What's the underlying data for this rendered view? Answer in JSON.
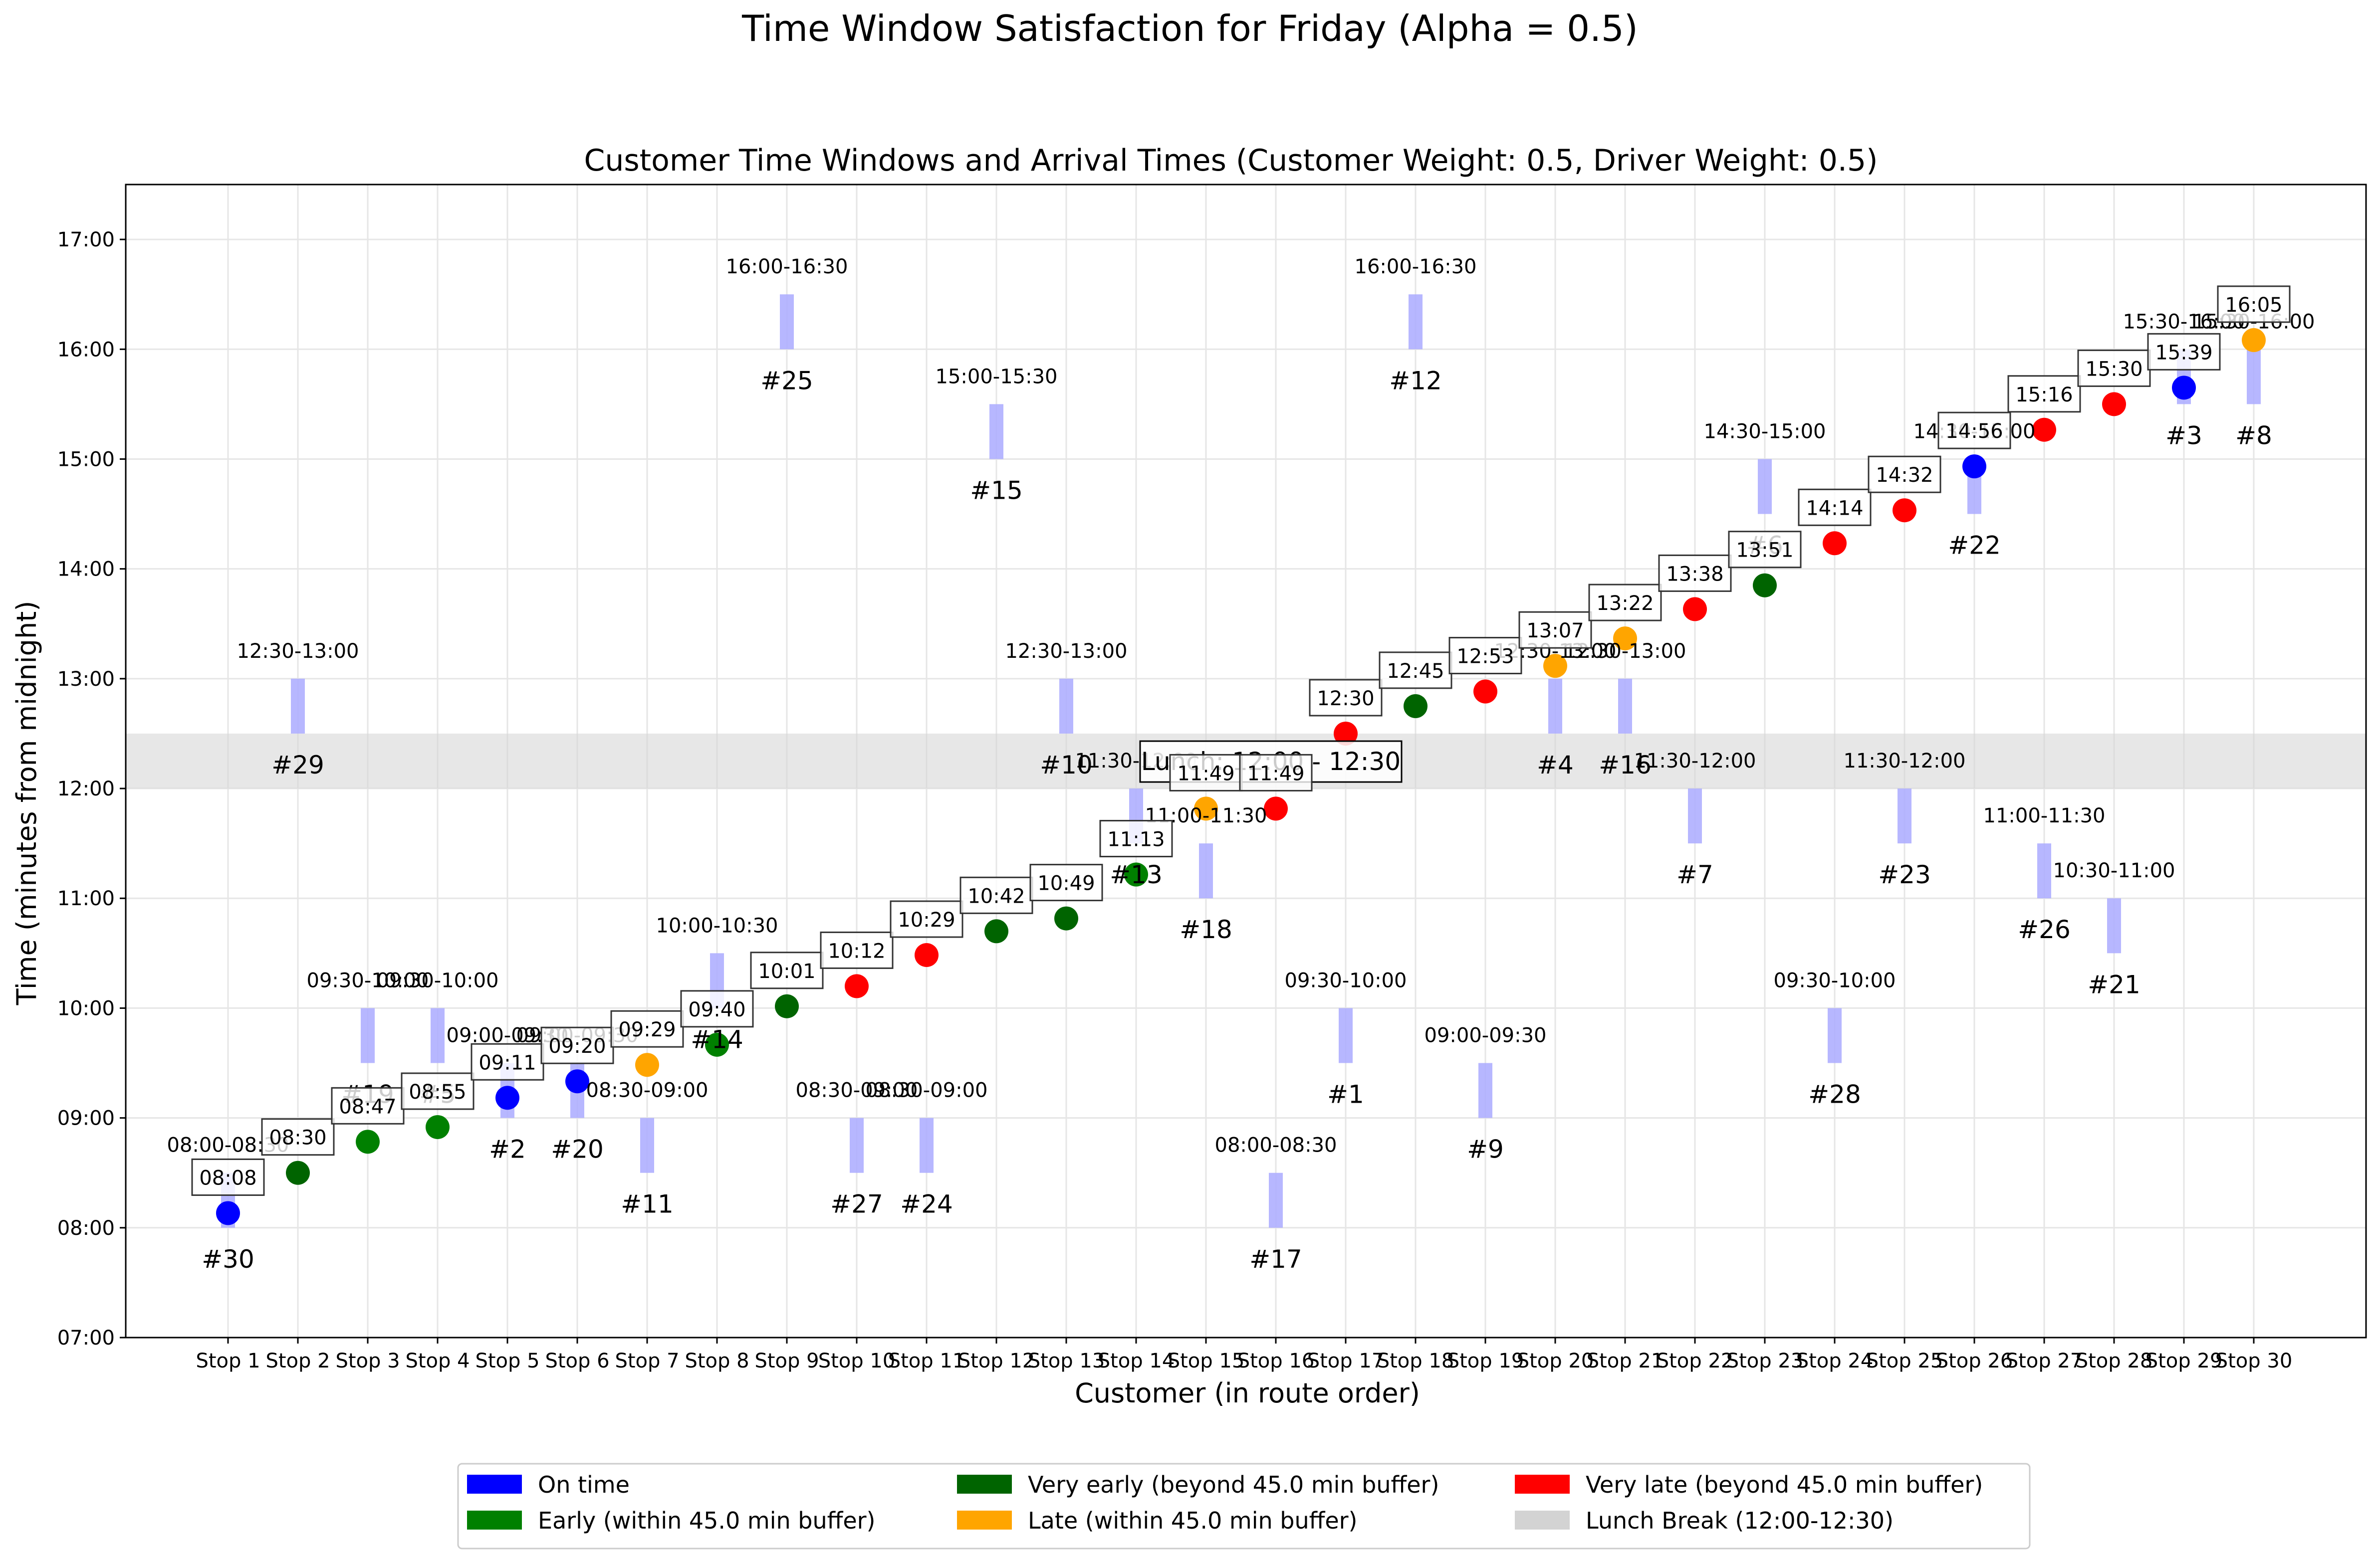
{
  "figure_title": "Time Window Satisfaction for Friday (Alpha = 0.5)",
  "colors": {
    "on_time": "#0000ff",
    "early": "#008000",
    "very_early": "#006400",
    "late": "#ffa500",
    "very_late": "#ff0000",
    "lunch": "#d3d3d3",
    "window_bar": "#aaaaff"
  },
  "legend": {
    "placement": "bottom-center, below plot",
    "items": [
      {
        "label": "On time",
        "color": "#0000ff"
      },
      {
        "label": "Very early (beyond 45.0 min buffer)",
        "color": "#006400"
      },
      {
        "label": "Very late (beyond 45.0 min buffer)",
        "color": "#ff0000"
      },
      {
        "label": "Early (within 45.0 min buffer)",
        "color": "#008000"
      },
      {
        "label": "Late (within 45.0 min buffer)",
        "color": "#ffa500"
      },
      {
        "label": "Lunch Break (12:00-12:30)",
        "color": "#d3d3d3"
      }
    ]
  },
  "chart_data": {
    "type": "scatter",
    "title": "Customer Time Windows and Arrival Times (Customer Weight: 0.5, Driver Weight: 0.5)",
    "xlabel": "Customer (in route order)",
    "ylabel": "Time (minutes from midnight)",
    "ylim": [
      420,
      1050
    ],
    "grid": true,
    "yticks": [
      {
        "value": 420,
        "label": "07:00"
      },
      {
        "value": 480,
        "label": "08:00"
      },
      {
        "value": 540,
        "label": "09:00"
      },
      {
        "value": 600,
        "label": "10:00"
      },
      {
        "value": 660,
        "label": "11:00"
      },
      {
        "value": 720,
        "label": "12:00"
      },
      {
        "value": 780,
        "label": "13:00"
      },
      {
        "value": 840,
        "label": "14:00"
      },
      {
        "value": 900,
        "label": "15:00"
      },
      {
        "value": 960,
        "label": "16:00"
      },
      {
        "value": 1020,
        "label": "17:00"
      }
    ],
    "lunch_band": {
      "start": 720,
      "end": 750,
      "label": "Lunch: 12:00 - 12:30"
    },
    "stops": [
      {
        "stop": "Stop 1",
        "customer": "#30",
        "window": "08:00-08:30",
        "win_start": 480,
        "win_end": 510,
        "arrival": 488,
        "arrival_label": "08:08",
        "status": "on_time"
      },
      {
        "stop": "Stop 2",
        "customer": "#29",
        "window": "12:30-13:00",
        "win_start": 750,
        "win_end": 780,
        "arrival": 510,
        "arrival_label": "08:30",
        "status": "very_early"
      },
      {
        "stop": "Stop 3",
        "customer": "#19",
        "window": "09:30-10:00",
        "win_start": 570,
        "win_end": 600,
        "arrival": 527,
        "arrival_label": "08:47",
        "status": "early"
      },
      {
        "stop": "Stop 4",
        "customer": "#5",
        "window": "09:30-10:00",
        "win_start": 570,
        "win_end": 600,
        "arrival": 535,
        "arrival_label": "08:55",
        "status": "early"
      },
      {
        "stop": "Stop 5",
        "customer": "#2",
        "window": "09:00-09:30",
        "win_start": 540,
        "win_end": 570,
        "arrival": 551,
        "arrival_label": "09:11",
        "status": "on_time"
      },
      {
        "stop": "Stop 6",
        "customer": "#20",
        "window": "09:00-09:30",
        "win_start": 540,
        "win_end": 570,
        "arrival": 560,
        "arrival_label": "09:20",
        "status": "on_time"
      },
      {
        "stop": "Stop 7",
        "customer": "#11",
        "window": "08:30-09:00",
        "win_start": 510,
        "win_end": 540,
        "arrival": 569,
        "arrival_label": "09:29",
        "status": "late"
      },
      {
        "stop": "Stop 8",
        "customer": "#14",
        "window": "10:00-10:30",
        "win_start": 600,
        "win_end": 630,
        "arrival": 580,
        "arrival_label": "09:40",
        "status": "early"
      },
      {
        "stop": "Stop 9",
        "customer": "#25",
        "window": "16:00-16:30",
        "win_start": 960,
        "win_end": 990,
        "arrival": 601,
        "arrival_label": "10:01",
        "status": "very_early"
      },
      {
        "stop": "Stop 10",
        "customer": "#27",
        "window": "08:30-09:00",
        "win_start": 510,
        "win_end": 540,
        "arrival": 612,
        "arrival_label": "10:12",
        "status": "very_late"
      },
      {
        "stop": "Stop 11",
        "customer": "#24",
        "window": "08:30-09:00",
        "win_start": 510,
        "win_end": 540,
        "arrival": 629,
        "arrival_label": "10:29",
        "status": "very_late"
      },
      {
        "stop": "Stop 12",
        "customer": "#15",
        "window": "15:00-15:30",
        "win_start": 900,
        "win_end": 930,
        "arrival": 642,
        "arrival_label": "10:42",
        "status": "very_early"
      },
      {
        "stop": "Stop 13",
        "customer": "#10",
        "window": "12:30-13:00",
        "win_start": 750,
        "win_end": 780,
        "arrival": 649,
        "arrival_label": "10:49",
        "status": "very_early"
      },
      {
        "stop": "Stop 14",
        "customer": "#13",
        "window": "11:30-12:00",
        "win_start": 690,
        "win_end": 720,
        "arrival": 673,
        "arrival_label": "11:13",
        "status": "early"
      },
      {
        "stop": "Stop 15",
        "customer": "#18",
        "window": "11:00-11:30",
        "win_start": 660,
        "win_end": 690,
        "arrival": 709,
        "arrival_label": "11:49",
        "status": "late"
      },
      {
        "stop": "Stop 16",
        "customer": "#17",
        "window": "08:00-08:30",
        "win_start": 480,
        "win_end": 510,
        "arrival": 709,
        "arrival_label": "11:49",
        "status": "very_late"
      },
      {
        "stop": "Stop 17",
        "customer": "#1",
        "window": "09:30-10:00",
        "win_start": 570,
        "win_end": 600,
        "arrival": 750,
        "arrival_label": "12:30",
        "status": "very_late"
      },
      {
        "stop": "Stop 18",
        "customer": "#12",
        "window": "16:00-16:30",
        "win_start": 960,
        "win_end": 990,
        "arrival": 765,
        "arrival_label": "12:45",
        "status": "very_early"
      },
      {
        "stop": "Stop 19",
        "customer": "#9",
        "window": "09:00-09:30",
        "win_start": 540,
        "win_end": 570,
        "arrival": 773,
        "arrival_label": "12:53",
        "status": "very_late"
      },
      {
        "stop": "Stop 20",
        "customer": "#4",
        "window": "12:30-13:00",
        "win_start": 750,
        "win_end": 780,
        "arrival": 787,
        "arrival_label": "13:07",
        "status": "late"
      },
      {
        "stop": "Stop 21",
        "customer": "#16",
        "window": "12:30-13:00",
        "win_start": 750,
        "win_end": 780,
        "arrival": 802,
        "arrival_label": "13:22",
        "status": "late"
      },
      {
        "stop": "Stop 22",
        "customer": "#7",
        "window": "11:30-12:00",
        "win_start": 690,
        "win_end": 720,
        "arrival": 818,
        "arrival_label": "13:38",
        "status": "very_late"
      },
      {
        "stop": "Stop 23",
        "customer": "#6",
        "window": "14:30-15:00",
        "win_start": 870,
        "win_end": 900,
        "arrival": 831,
        "arrival_label": "13:51",
        "status": "very_early"
      },
      {
        "stop": "Stop 24",
        "customer": "#28",
        "window": "09:30-10:00",
        "win_start": 570,
        "win_end": 600,
        "arrival": 854,
        "arrival_label": "14:14",
        "status": "very_late"
      },
      {
        "stop": "Stop 25",
        "customer": "#23",
        "window": "11:30-12:00",
        "win_start": 690,
        "win_end": 720,
        "arrival": 872,
        "arrival_label": "14:32",
        "status": "very_late"
      },
      {
        "stop": "Stop 26",
        "customer": "#22",
        "window": "14:30-15:00",
        "win_start": 870,
        "win_end": 900,
        "arrival": 896,
        "arrival_label": "14:56",
        "status": "on_time"
      },
      {
        "stop": "Stop 27",
        "customer": "#26",
        "window": "11:00-11:30",
        "win_start": 660,
        "win_end": 690,
        "arrival": 916,
        "arrival_label": "15:16",
        "status": "very_late"
      },
      {
        "stop": "Stop 28",
        "customer": "#21",
        "window": "10:30-11:00",
        "win_start": 630,
        "win_end": 660,
        "arrival": 930,
        "arrival_label": "15:30",
        "status": "very_late"
      },
      {
        "stop": "Stop 29",
        "customer": "#3",
        "window": "15:30-16:00",
        "win_start": 930,
        "win_end": 960,
        "arrival": 939,
        "arrival_label": "15:39",
        "status": "on_time"
      },
      {
        "stop": "Stop 30",
        "customer": "#8",
        "window": "15:30-16:00",
        "win_start": 930,
        "win_end": 960,
        "arrival": 965,
        "arrival_label": "16:05",
        "status": "late"
      }
    ]
  }
}
